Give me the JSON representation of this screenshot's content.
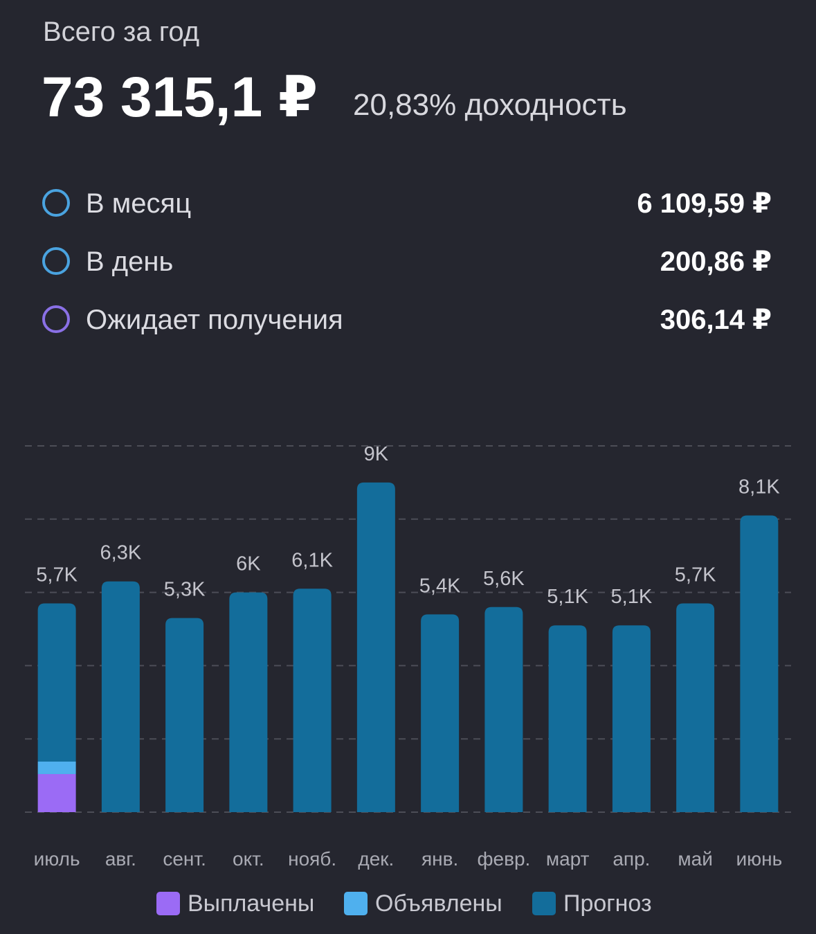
{
  "header": {
    "title": "Всего за год",
    "total": "73 315,1 ₽",
    "yield": "20,83% доходность"
  },
  "stats": [
    {
      "label": "В месяц",
      "value": "6 109,59 ₽",
      "color": "#4aa3e0"
    },
    {
      "label": "В день",
      "value": "200,86 ₽",
      "color": "#4aa3e0"
    },
    {
      "label": "Ожидает получения",
      "value": "306,14 ₽",
      "color": "#8a70e6"
    }
  ],
  "chart_data": {
    "type": "bar",
    "stacked": true,
    "categories": [
      "июль",
      "авг.",
      "сент.",
      "окт.",
      "нояб.",
      "дек.",
      "янв.",
      "февр.",
      "март",
      "апр.",
      "май",
      "июнь"
    ],
    "series": [
      {
        "name": "Выплачены",
        "color": "#9b6bf5",
        "values": [
          1040,
          0,
          0,
          0,
          0,
          0,
          0,
          0,
          0,
          0,
          0,
          0
        ]
      },
      {
        "name": "Объявлены",
        "color": "#4fb0ee",
        "values": [
          340,
          0,
          0,
          0,
          0,
          0,
          0,
          0,
          0,
          0,
          0,
          0
        ]
      },
      {
        "name": "Прогноз",
        "color": "#136d9b",
        "values": [
          4320,
          6300,
          5300,
          6000,
          6100,
          9000,
          5400,
          5600,
          5100,
          5100,
          5700,
          8100
        ]
      }
    ],
    "totals": [
      5700,
      6300,
      5300,
      6000,
      6100,
      9000,
      5400,
      5600,
      5100,
      5100,
      5700,
      8100
    ],
    "value_labels": [
      "5,7K",
      "6,3K",
      "5,3K",
      "6K",
      "6,1K",
      "9K",
      "5,4K",
      "5,6K",
      "5,1K",
      "5,1K",
      "5,7K",
      "8,1K"
    ],
    "ylim": [
      0,
      10000
    ],
    "yticks": [
      0,
      2000,
      4000,
      6000,
      8000,
      10000
    ],
    "grid": true,
    "legend": "bottom"
  }
}
